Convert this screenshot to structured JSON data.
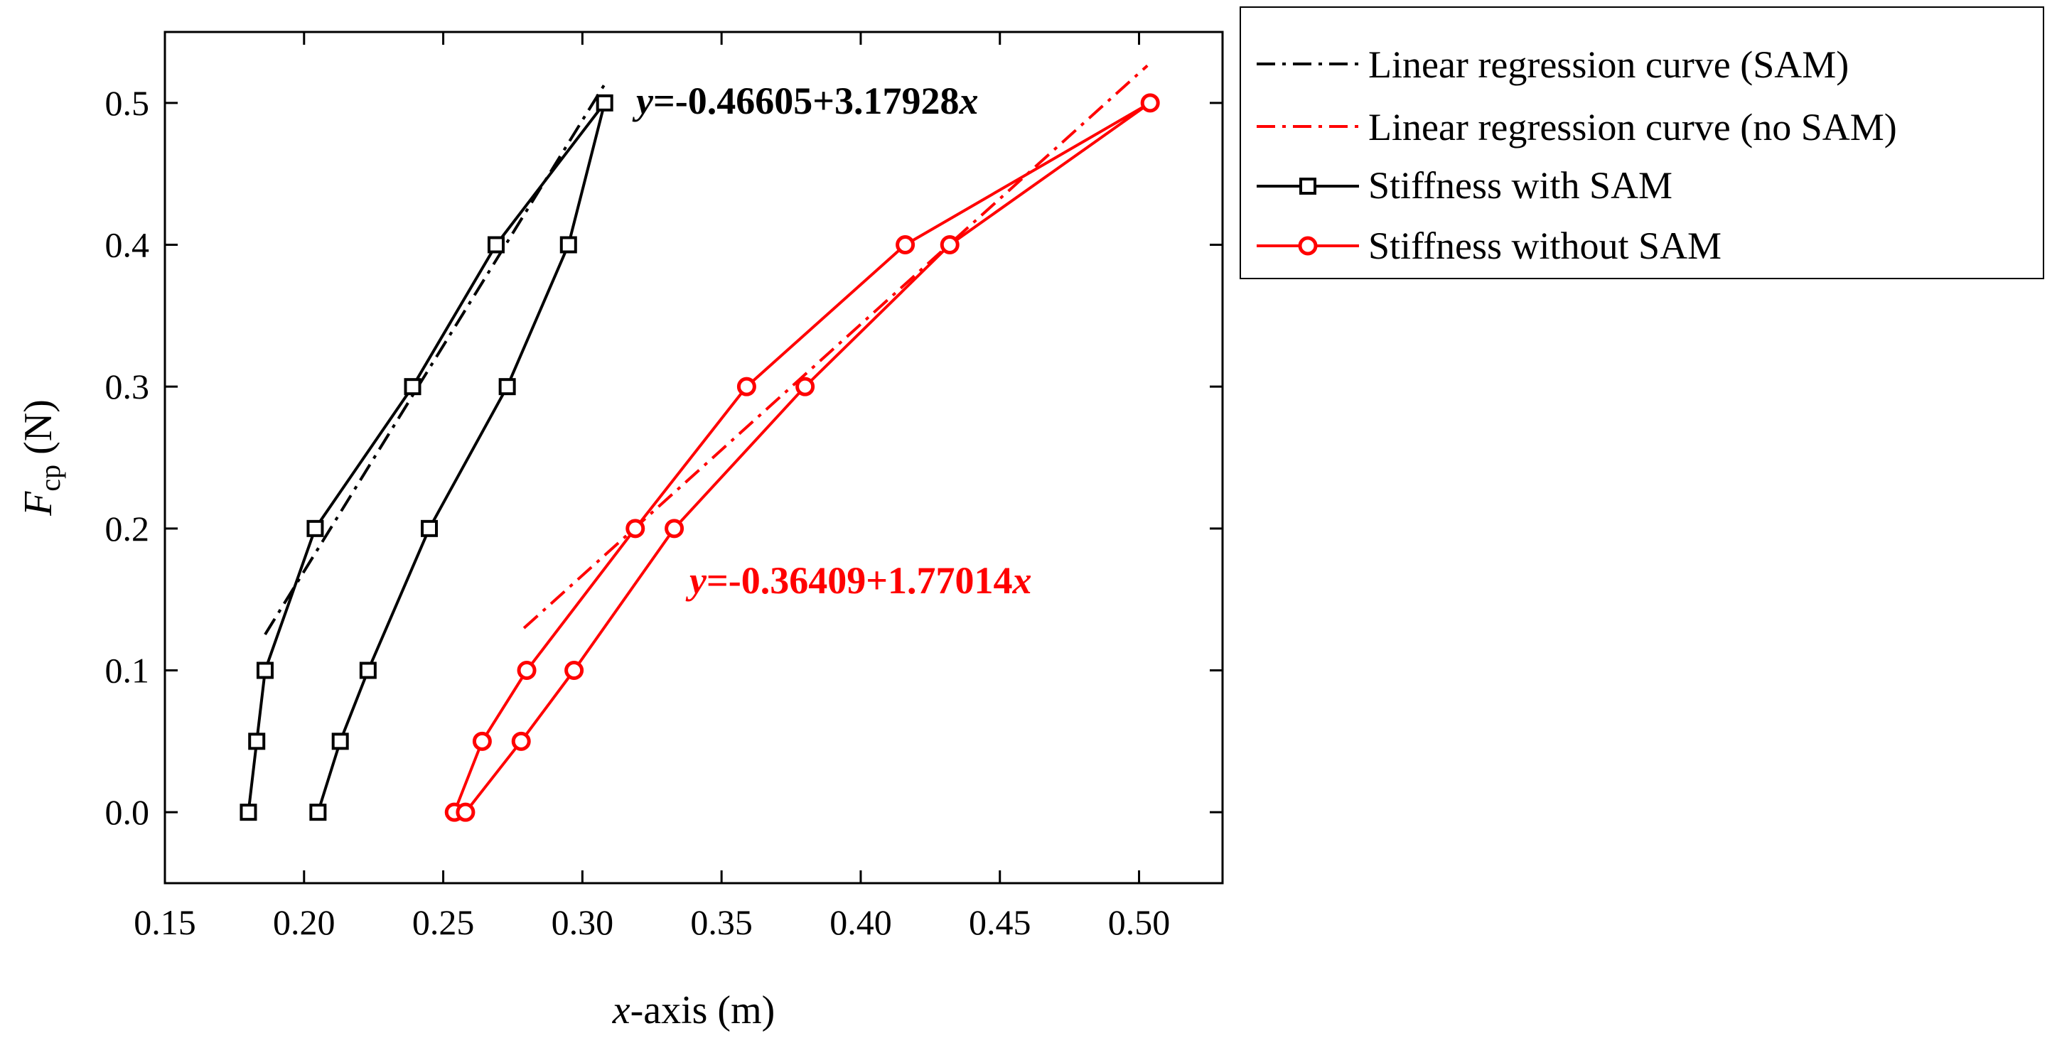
{
  "chart_data": {
    "type": "line",
    "xlabel_italic": "x",
    "xlabel_rest": "-axis (m)",
    "ylabel_main": "F",
    "ylabel_sub": "cp",
    "ylabel_unit": " (N)",
    "xlim": [
      0.15,
      0.53
    ],
    "ylim": [
      -0.05,
      0.55
    ],
    "xticks": [
      0.15,
      0.2,
      0.25,
      0.3,
      0.35,
      0.4,
      0.45,
      0.5
    ],
    "xtick_labels": [
      "0.15",
      "0.20",
      "0.25",
      "0.30",
      "0.35",
      "0.40",
      "0.45",
      "0.50"
    ],
    "yticks": [
      0.0,
      0.1,
      0.2,
      0.3,
      0.4,
      0.5
    ],
    "ytick_labels": [
      "0.0",
      "0.1",
      "0.2",
      "0.3",
      "0.4",
      "0.5"
    ],
    "colors": {
      "sam": "#000000",
      "nosam": "#ff0000"
    },
    "series": [
      {
        "name": "Stiffness with SAM",
        "color": "#000000",
        "marker": "square",
        "x": [
          0.18,
          0.183,
          0.186,
          0.204,
          0.239,
          0.269,
          0.308,
          0.295,
          0.273,
          0.245,
          0.223,
          0.213,
          0.205
        ],
        "y": [
          0.0,
          0.05,
          0.1,
          0.2,
          0.3,
          0.4,
          0.5,
          0.4,
          0.3,
          0.2,
          0.1,
          0.05,
          0.0
        ]
      },
      {
        "name": "Stiffness without SAM",
        "color": "#ff0000",
        "marker": "circle",
        "x": [
          0.254,
          0.264,
          0.28,
          0.319,
          0.359,
          0.416,
          0.504,
          0.432,
          0.38,
          0.333,
          0.297,
          0.278,
          0.258
        ],
        "y": [
          0.0,
          0.05,
          0.1,
          0.2,
          0.3,
          0.4,
          0.5,
          0.4,
          0.3,
          0.2,
          0.1,
          0.05,
          0.0
        ]
      }
    ],
    "regressions": [
      {
        "name": "Linear regression curve (SAM)",
        "color": "#000000",
        "intercept": -0.46605,
        "slope": 3.17928,
        "x_range": [
          0.186,
          0.309
        ],
        "equation_prefix": "y",
        "equation_body": "=-0.46605+3.17928",
        "equation_suffix": "x"
      },
      {
        "name": "Linear regression curve (no SAM)",
        "color": "#ff0000",
        "intercept": -0.36409,
        "slope": 1.77014,
        "x_range": [
          0.279,
          0.503
        ],
        "equation_prefix": "y",
        "equation_body": "=-0.36409+1.77014",
        "equation_suffix": "x"
      }
    ],
    "legend": {
      "position": "right-top",
      "entries": [
        {
          "label": "Linear regression curve (SAM)",
          "style": "dashdot",
          "color": "#000000"
        },
        {
          "label": "Linear regression curve (no SAM)",
          "style": "dashdot",
          "color": "#ff0000"
        },
        {
          "label": "Stiffness with SAM",
          "style": "line-square",
          "color": "#000000"
        },
        {
          "label": "Stiffness without SAM",
          "style": "line-circle",
          "color": "#ff0000"
        }
      ]
    }
  }
}
